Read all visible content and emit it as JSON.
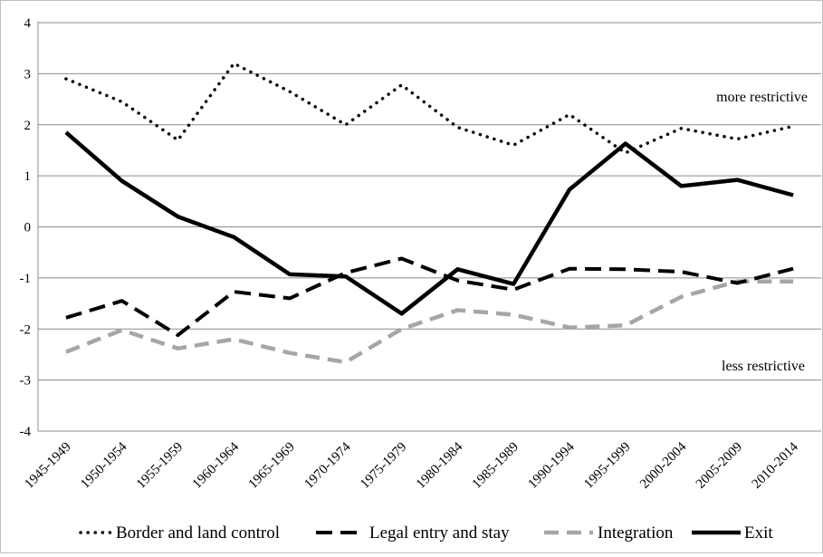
{
  "chart_data": {
    "type": "line",
    "categories": [
      "1945-1949",
      "1950-1954",
      "1955-1959",
      "1960-1964",
      "1965-1969",
      "1970-1974",
      "1975-1979",
      "1980-1984",
      "1985-1989",
      "1990-1994",
      "1995-1999",
      "2000-2004",
      "2005-2009",
      "2010-2014"
    ],
    "y_ticks": [
      "4",
      "3",
      "2",
      "1",
      "0",
      "-1",
      "-2",
      "-3",
      "-4"
    ],
    "ylim": [
      -4,
      4
    ],
    "grid": true,
    "legend_position": "bottom",
    "annotations": {
      "upper": "more restrictive",
      "lower": "less restrictive"
    },
    "series": [
      {
        "name": "Border and land control",
        "style": "dotted",
        "color": "#000000",
        "values": [
          2.9,
          2.45,
          1.7,
          3.2,
          2.65,
          2.0,
          2.78,
          1.95,
          1.6,
          2.2,
          1.45,
          1.93,
          1.72,
          1.97
        ]
      },
      {
        "name": "Legal entry and stay",
        "style": "dashed",
        "color": "#000000",
        "values": [
          -1.78,
          -1.45,
          -2.12,
          -1.27,
          -1.4,
          -0.9,
          -0.62,
          -1.05,
          -1.23,
          -0.82,
          -0.83,
          -0.88,
          -1.1,
          -0.82
        ]
      },
      {
        "name": "Integration",
        "style": "dashed",
        "color": "#a6a6a6",
        "values": [
          -2.45,
          -2.02,
          -2.38,
          -2.2,
          -2.47,
          -2.65,
          -2.0,
          -1.63,
          -1.72,
          -1.97,
          -1.93,
          -1.37,
          -1.07,
          -1.07
        ]
      },
      {
        "name": "Exit",
        "style": "solid",
        "color": "#000000",
        "values": [
          1.85,
          0.9,
          0.2,
          -0.2,
          -0.93,
          -0.97,
          -1.7,
          -0.83,
          -1.12,
          0.73,
          1.63,
          0.8,
          0.92,
          0.62
        ]
      }
    ]
  }
}
